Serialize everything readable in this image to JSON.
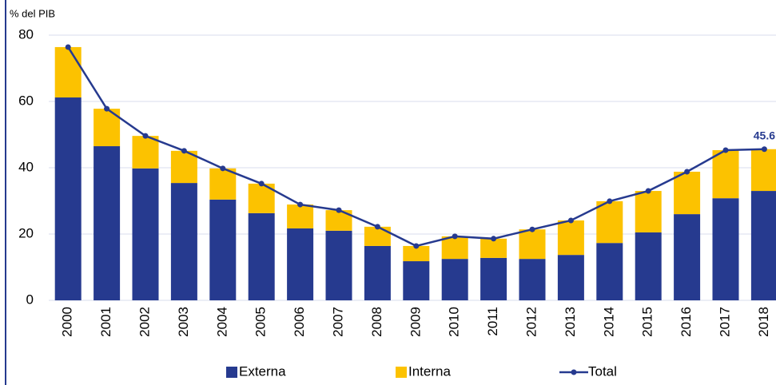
{
  "chart_data": {
    "type": "stacked-bar-line",
    "y_label": "% del PIB",
    "categories": [
      "2000",
      "2001",
      "2002",
      "2003",
      "2004",
      "2005",
      "2006",
      "2007",
      "2008",
      "2009",
      "2010",
      "2011",
      "2012",
      "2013",
      "2014",
      "2015",
      "2016",
      "2017",
      "2018"
    ],
    "series": [
      {
        "name": "Externa",
        "color": "#263a8f",
        "kind": "bar",
        "values": [
          61.2,
          46.5,
          39.8,
          35.4,
          30.4,
          26.3,
          21.7,
          21.0,
          16.4,
          11.8,
          12.5,
          12.8,
          12.5,
          13.7,
          17.3,
          20.5,
          26.0,
          30.8,
          33.0
        ]
      },
      {
        "name": "Interna",
        "color": "#fcc200",
        "kind": "bar",
        "values": [
          15.2,
          11.3,
          9.8,
          9.7,
          9.4,
          8.9,
          7.2,
          6.2,
          5.8,
          4.6,
          6.8,
          5.8,
          8.9,
          10.4,
          12.6,
          12.5,
          12.8,
          14.5,
          12.6
        ]
      },
      {
        "name": "Total",
        "color": "#263a8f",
        "kind": "line",
        "values": [
          76.4,
          57.8,
          49.6,
          45.1,
          39.8,
          35.2,
          28.9,
          27.2,
          22.2,
          16.4,
          19.3,
          18.6,
          21.4,
          24.1,
          29.9,
          33.0,
          38.8,
          45.3,
          45.6
        ]
      }
    ],
    "ylim": [
      0,
      80
    ],
    "yticks": [
      0,
      20,
      40,
      60,
      80
    ],
    "grid": true,
    "legend": "bottom"
  }
}
